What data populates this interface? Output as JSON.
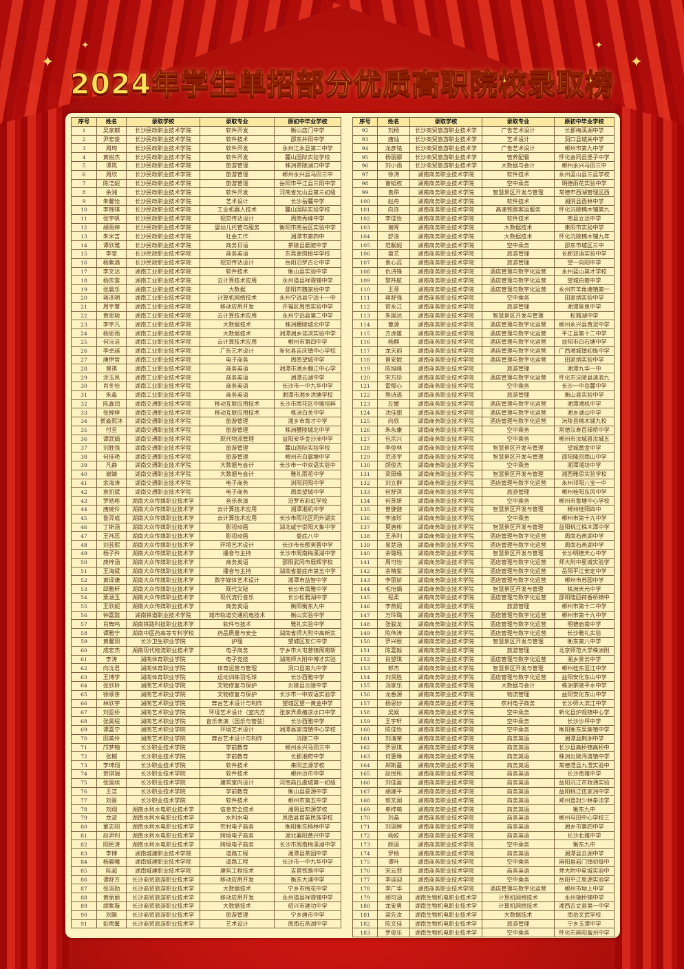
{
  "title": "2024年学生单招部分优质高职院校录取榜",
  "colors": {
    "background": "#c8150f",
    "panel": "#fdf3c2",
    "title": "#ffe25a",
    "title_outline": "#8a1c00"
  },
  "headers": [
    "序号",
    "姓名",
    "录取学校",
    "录取专业",
    "原初中毕业学校"
  ],
  "left": {
    "rows": [
      [
        "1",
        "吴家麒",
        "长沙民政职业技术学院",
        "软件开发",
        "衡山店门中学"
      ],
      [
        "2",
        "尹宏俊",
        "长沙民政职业技术学院",
        "软件技术",
        "邵东井田中学"
      ],
      [
        "3",
        "周珣",
        "长沙民政职业技术学院",
        "软件开发",
        "永州江永县第二中学"
      ],
      [
        "4",
        "黄锐杰",
        "长沙民政职业技术学院",
        "软件开发",
        "麓山国际实验学校"
      ],
      [
        "5",
        "谭岚",
        "长沙民政职业技术学院",
        "旅游管理",
        "株洲茶陵湖口中学"
      ],
      [
        "6",
        "周欣",
        "长沙民政职业技术学院",
        "旅游管理",
        "郴州永兴县马田三中"
      ],
      [
        "7",
        "陈洁妮",
        "长沙民政职业技术学院",
        "旅游管理",
        "岳阳市平江县三阳中学"
      ],
      [
        "8",
        "余湘",
        "长沙民政职业技术学院",
        "软件开发",
        "河南省光山县第三初级"
      ],
      [
        "9",
        "朱馨怡",
        "长沙民政职业技术学院",
        "艺术设计",
        "长沙岳麓中学"
      ],
      [
        "10",
        "李锦祺",
        "长沙民政职业技术学院",
        "工业机器人技术",
        "麓山国际实验学校"
      ],
      [
        "11",
        "张宇帆",
        "长沙民政职业技术学院",
        "视觉传达设计",
        "周南秀峰中学"
      ],
      [
        "12",
        "胡雨婷",
        "长沙民政职业技术学院",
        "婴幼儿托管与服务",
        "衡阳市南岳区实验中学"
      ],
      [
        "13",
        "朱米吉",
        "长沙民政职业技术学院",
        "社会工作",
        "湘潭市第四中"
      ],
      [
        "14",
        "谭欣雅",
        "长沙民政职业技术学院",
        "商务日语",
        "茶陵县腰陂中学"
      ],
      [
        "15",
        "李莹",
        "长沙民政职业技术学院",
        "商务英语",
        "东莞谢岗振华学校"
      ],
      [
        "16",
        "杨紫潞",
        "长沙民政职业技术学院",
        "视觉传达设计",
        "岳阳汨罗古仑中学"
      ],
      [
        "17",
        "李文达",
        "湖南工业职业技术学院",
        "软件技术",
        "衡山县实验中学"
      ],
      [
        "18",
        "杨庆雲",
        "湖南工业职业技术学院",
        "云计算技术应用",
        "永州道县祥霖铺中学"
      ],
      [
        "19",
        "张晨乐",
        "湖南工业职业技术学院",
        "大数据",
        "邵阳市魏家桥中学"
      ],
      [
        "20",
        "蒋泽明",
        "湖南工业职业技术学院",
        "计算机网络技术",
        "永州宁远县宁远十一中"
      ],
      [
        "21",
        "周宇覃",
        "湖南工业职业技术学院",
        "移动应用开发",
        "开福区周南实验中学"
      ],
      [
        "22",
        "黄思聪",
        "湖南工业职业技术学院",
        "云计算技术应用",
        "永州宁远县第二中学"
      ],
      [
        "23",
        "李宇凡",
        "湖南工业职业技术学院",
        "大数据技术",
        "株洲醴陵城北中学"
      ],
      [
        "24",
        "杨思雨",
        "湖南工业职业技术学院",
        "大数据技术",
        "湘潭湘乡涟滨实验中学"
      ],
      [
        "25",
        "何沅洁",
        "湖南工业职业技术学院",
        "云计算技术应用",
        "郴州市第四中学"
      ],
      [
        "26",
        "李卓越",
        "湖南工业职业技术学院",
        "广告艺术设计",
        "新化县吉庆镇中心学校"
      ],
      [
        "27",
        "唐伊哲",
        "湖南工业职业技术学院",
        "电子商务",
        "周南望城中学"
      ],
      [
        "28",
        "曾祺",
        "湖南工业职业技术学院",
        "商务英语",
        "湘潭市湘乡翻江中心学"
      ],
      [
        "29",
        "涂玉凤",
        "湖南工业职业技术学院",
        "商务英语",
        "湘潭云湖中学"
      ],
      [
        "30",
        "肖冬怡",
        "湖南工业职业技术学院",
        "商务英语",
        "长沙市一中九华中学"
      ],
      [
        "31",
        "朱淼",
        "湖南工业职业技术学院",
        "商务英语",
        "湘潭市湘乡洪塘学校"
      ],
      [
        "32",
        "陈鑫润",
        "湖南交通职业技术学院",
        "移动互联应用技术",
        "长沙市雨花区中雅培粹"
      ],
      [
        "33",
        "张婷婷",
        "湖南交通职业技术学院",
        "移动互联应用技术",
        "株洲白关中学"
      ],
      [
        "34",
        "贺淼熙沐",
        "湖南交通职业技术学院",
        "旅游管理",
        "湘乡市育才中学"
      ],
      [
        "35",
        "付旦",
        "湖南交通职业技术学院",
        "旅游管理",
        "株洲醴陵城北中学"
      ],
      [
        "36",
        "谭武娟",
        "湖南交通职业技术学院",
        "现代物流管理",
        "益阳安华金沙洲中学"
      ],
      [
        "37",
        "刘胜强",
        "湖南交通职业技术学院",
        "旅游管理",
        "麓山国际实验学校"
      ],
      [
        "38",
        "何佳艳",
        "湖南交通职业技术学院",
        "旅游管理",
        "郴州市白露塘中学"
      ],
      [
        "39",
        "凡静",
        "湖南交通职业技术学院",
        "大数据与会计",
        "长沙市一中双语实验中"
      ],
      [
        "40",
        "谢婧",
        "湖南交通职业技术学院",
        "大数据与会计",
        "雅礼雨花中学"
      ],
      [
        "41",
        "余海涛",
        "湖南交通职业技术学院",
        "电子商务",
        "浏阳洞阳中学"
      ],
      [
        "42",
        "袁凯斌",
        "湖南交通职业技术学院",
        "电子商务",
        "周南望城中学"
      ],
      [
        "43",
        "罗皓彬",
        "湖南大众传媒职业技术学",
        "音乐表演",
        "汨罗市彩虹学校"
      ],
      [
        "44",
        "唐婉伶",
        "湖南大众传媒职业技术学",
        "云计算技术应用",
        "湘潭湘机中学"
      ],
      [
        "45",
        "鲁羿成",
        "湖南大众传媒职业技术学",
        "云计算技术应用",
        "长沙市雨花区同升湖实"
      ],
      [
        "46",
        "丁斯涵",
        "湖南大众传媒职业技术学",
        "影视动画",
        "湖北咸宁崇阳大集中学"
      ],
      [
        "47",
        "王祎蕊",
        "湖南大众传媒职业技术学",
        "影视动画",
        "娄底八中"
      ],
      [
        "48",
        "刘芸熙",
        "湖南大众传媒职业技术学",
        "环境艺术设计",
        "长沙市长郡芙蓉中学"
      ],
      [
        "49",
        "杨子矜",
        "湖南大众传媒职业技术学",
        "播音与主持",
        "长沙市周南梅溪湖中学"
      ],
      [
        "50",
        "庾梓涵",
        "湖南大众传媒职业技术学",
        "商务英语",
        "邵阳武冈市展辉学校"
      ],
      [
        "51",
        "王海斌",
        "湖南大众传媒职业技术学",
        "播音与主持",
        "湖南省娄底市第五中学"
      ],
      [
        "52",
        "黄译谦",
        "湖南大众传媒职业技术学",
        "数字媒体艺术设计",
        "湘潭市益智中学"
      ],
      [
        "53",
        "邱雅轩",
        "湖南大众传媒职业技术学",
        "现代文秘",
        "长沙市南雅中学"
      ],
      [
        "54",
        "粟涵玉",
        "湖南大众传媒职业技术学",
        "现代流行音乐",
        "长沙松雅湖中学"
      ],
      [
        "55",
        "王欣妮",
        "湖南大众传媒职业技术学",
        "商务英语",
        "衡阳衡东九中"
      ],
      [
        "56",
        "钟嘉懿",
        "湖南铁道职业技术学院",
        "城市轨道交通机电技术",
        "衡山实验中学"
      ],
      [
        "57",
        "肖舞鸣",
        "湖南铁路科技职业技术学",
        "软件与技术",
        "雅礼实验中学"
      ],
      [
        "58",
        "谭雅宁",
        "湖南中医药高等专科学校",
        "药品质量与安全",
        "湖南省师大附中高新实"
      ],
      [
        "59",
        "黄馨田",
        "长沙卫生职业学院",
        "护理",
        "望城区友仁中学"
      ],
      [
        "60",
        "成宏杰",
        "湖南现代物流职业技术学",
        "电子商务",
        "宁乡市大屯营镇周南斩"
      ],
      [
        "61",
        "李涛",
        "湖南体育职业学院",
        "电子竞技",
        "湖南师大附中博才实验"
      ],
      [
        "62",
        "向沈君",
        "湖南体育职业学院",
        "体育运营与管理",
        "洞口县第九中学"
      ],
      [
        "63",
        "王博学",
        "湖南体育职业学院",
        "运动训练羽毛球",
        "长沙西雅中学"
      ],
      [
        "64",
        "张欣聆",
        "湖南艺术职业学院",
        "文物修复与保护",
        "炎陵县炎陵中学"
      ],
      [
        "65",
        "徐顺亲",
        "湖南艺术职业学院",
        "文物修复与保护",
        "长沙市一中双语实验学"
      ],
      [
        "66",
        "林欣宇",
        "湖南艺术职业学院",
        "舞台艺术设计与制作",
        "望城区望一黄金中学"
      ],
      [
        "67",
        "刘亚桥",
        "湖南艺术职业学院",
        "环境艺术设计（室内方",
        "张家界桑植凉水口中学"
      ],
      [
        "68",
        "张昊程",
        "湖南艺术职业学院",
        "音乐表演（国乐与管弦）",
        "长沙西雅中学"
      ],
      [
        "69",
        "谭嘉宁",
        "湖南艺术职业学院",
        "环境艺术设计",
        "湘潭易家湾镇中心学校"
      ],
      [
        "70",
        "田美伶",
        "湖南艺术职业学院",
        "舞台艺术设计与制作",
        "沅陵二中"
      ],
      [
        "71",
        "邝梦翰",
        "长沙职业技术学院",
        "学前教育",
        "郴州永兴马田三中"
      ],
      [
        "72",
        "张樾",
        "长沙职业技术学院",
        "学前教育",
        "长郡湘府中学"
      ],
      [
        "73",
        "李坤翔",
        "长沙职业技术学院",
        "软件技术",
        "耒阳正源学校"
      ],
      [
        "74",
        "贺琪瑞",
        "长沙职业技术学院",
        "软件技术",
        "郴州汾市中学"
      ],
      [
        "75",
        "张国续",
        "长沙职业技术学院",
        "建筑室内设计",
        "河南商丘虞城第一初级"
      ],
      [
        "76",
        "王洁",
        "长沙职业技术学院",
        "学前教育",
        "衡山县星源中学"
      ],
      [
        "77",
        "刘晋",
        "长沙职业技术学院",
        "软件技术",
        "郴州市第五中学"
      ],
      [
        "78",
        "刘翔",
        "湖南水利水电职业技术学",
        "信息安全技术",
        "湘阴县知源学校"
      ],
      [
        "79",
        "龙波",
        "湖南水利水电职业技术学",
        "水利水电",
        "凤凰县育英民族学校"
      ],
      [
        "80",
        "董志阳",
        "湖南水利水电职业技术学",
        "农村电子商务",
        "衡阳衡东杨林中学"
      ],
      [
        "81",
        "赵尹利",
        "湖南水利水电职业技术学",
        "跨境电子商务",
        "湖北襄阳黄兴中学"
      ],
      [
        "82",
        "阳民涛",
        "湖南水利水电职业技术学",
        "跨境电子商务",
        "长沙市周南梅溪湖中学"
      ],
      [
        "83",
        "李博",
        "湖南城建职业技术学院",
        "道路工程",
        "湘潭县茶园中学"
      ],
      [
        "84",
        "杨晨曦",
        "湖南城建职业技术学院",
        "道路工程",
        "长沙市一中九华中学"
      ],
      [
        "85",
        "陈超",
        "湖南城建职业技术学院",
        "建筑工程技术",
        "吉首铁路中学"
      ],
      [
        "86",
        "谭舒方",
        "长沙商贸旅游职业技术学",
        "移动应用开发",
        "衡东大浦中学"
      ],
      [
        "87",
        "张羽勋",
        "长沙商贸旅游职业技术学",
        "大数据技术",
        "宁乡市梅花中学"
      ],
      [
        "88",
        "黄丽丽",
        "长沙商贸旅游职业技术学",
        "移动应用开发",
        "永州道县祥霖铺中学"
      ],
      [
        "89",
        "胡紫璇",
        "长沙商贸旅游职业技术学",
        "大数据技术",
        "绍兴市建功中学"
      ],
      [
        "90",
        "刘飘",
        "长沙商贸旅游职业技术学",
        "旅游管理",
        "宁乡唐市中学"
      ],
      [
        "91",
        "彭雨馨",
        "长沙商贸旅游职业技术学",
        "艺术设计",
        "周南石燕湖中学"
      ]
    ]
  },
  "right": {
    "rows": [
      [
        "92",
        "刘杨",
        "长沙商贸旅游职业技术学",
        "广告艺术设计",
        "长郡梅溪湖中学"
      ],
      [
        "93",
        "唐灿",
        "长沙商贸旅游职业技术学",
        "艺术设计",
        "洞口县城关中学"
      ],
      [
        "94",
        "龙彦铭",
        "长沙商贸旅游职业技术学",
        "广告艺术设计",
        "郴州市第九中学"
      ],
      [
        "95",
        "杨丽娜",
        "长沙商贸旅游职业技术学",
        "营养配餐",
        "怀化会同县堡子中学"
      ],
      [
        "96",
        "刘小雨",
        "长沙商贸旅游职业技术学",
        "大数据与会计",
        "郴州永兴马田三中"
      ],
      [
        "97",
        "徐涛",
        "湖南商务职业技术学院",
        "软件技术",
        "永州蓝山县三蓝学校"
      ],
      [
        "98",
        "谢韬权",
        "湖南商务职业技术学院",
        "空中乘务",
        "明德雨花实验中学"
      ],
      [
        "99",
        "袁昂",
        "湖南商务职业技术学院",
        "智慧景区开发与管理",
        "常德市西湖管理区西"
      ],
      [
        "100",
        "赵舟",
        "湖南商务职业技术学院",
        "软件技术",
        "湘阴县西林中学"
      ],
      [
        "101",
        "向亦",
        "湖南商务职业技术学院",
        "高速铁路客运服务",
        "怀化沅陵楠木铺第九"
      ],
      [
        "102",
        "李佳怡",
        "湖南商务职业技术学院",
        "软件技术",
        "南县立达中学"
      ],
      [
        "103",
        "谢晖",
        "湖南商务职业技术学院",
        "大数据技术",
        "耒阳市实验中学"
      ],
      [
        "104",
        "舒浪",
        "湖南商务职业技术学院",
        "大数据技术",
        "怀化沅陵楠木铺九年"
      ],
      [
        "105",
        "范靓妮",
        "湖南商务职业技术学院",
        "空中乘务",
        "邵东市城区三中"
      ],
      [
        "106",
        "盘艺",
        "湖南商务职业技术学院",
        "旅游管理",
        "长郡双语实验中学"
      ],
      [
        "107",
        "袁心蕊",
        "湖南商务职业技术学院",
        "旅游管理",
        "望一向阳中学"
      ],
      [
        "108",
        "仇诗锋",
        "湖南商务职业技术学院",
        "酒店管理与数字化运营",
        "永州蓝山英才学校"
      ],
      [
        "109",
        "黎祎航",
        "湖南商务职业技术学院",
        "酒店管理与数字化运营",
        "望城白箬中学"
      ],
      [
        "110",
        "王菲",
        "湖南商务职业技术学院",
        "酒店管理与数字化运营",
        "永州市羊角塘镇第一"
      ],
      [
        "111",
        "蒋舒强",
        "湖南商务职业技术学院",
        "空中乘务",
        "田家炳实验中学"
      ],
      [
        "112",
        "官永江",
        "湖南商务职业技术学院",
        "旅游管理",
        "湘潭景泉中学"
      ],
      [
        "113",
        "朱国达",
        "湖南商务职业技术学院",
        "智慧景区开发与管理",
        "松雅湖中学"
      ],
      [
        "114",
        "曹源",
        "湖南商务职业技术学院",
        "酒店管理与数字化运营",
        "郴州永兴县黄泥中学"
      ],
      [
        "115",
        "方虎雄",
        "湖南商务职业技术学院",
        "酒店管理与数字化运营",
        "平江县第十二中学"
      ],
      [
        "116",
        "杨麒",
        "湖南商务职业技术学院",
        "酒店管理与数字化运营",
        "益阳市白石塘中学"
      ],
      [
        "117",
        "龙天韵",
        "湖南商务职业技术学院",
        "酒店管理与数字化运营",
        "广西湘城镇初级中学"
      ],
      [
        "118",
        "曾安妮",
        "湖南商务职业技术学院",
        "酒店管理与数字化运营",
        "田家炳实验中学"
      ],
      [
        "119",
        "陈旭峰",
        "湖南商务职业技术学院",
        "旅游管理",
        "湘潭九华一中"
      ],
      [
        "120",
        "宋万珍",
        "湖南商务职业技术学院",
        "酒店管理与数字化运营",
        "怀化市沅陵县清浪九"
      ],
      [
        "121",
        "雷郁心",
        "湖南商务职业技术学院",
        "空中乘务",
        "长沙一中岳麓中学"
      ],
      [
        "122",
        "熊诗语",
        "湖南商务职业技术学院",
        "旅游管理",
        "衡山县实验中学"
      ],
      [
        "123",
        "左媛",
        "湖南商务职业技术学院",
        "酒店管理与数字化运营",
        "湘潭湘机中学"
      ],
      [
        "124",
        "沈佳甜",
        "湖南商务职业技术学院",
        "酒店管理与数字化运营",
        "湘乡湖山中学"
      ],
      [
        "125",
        "向欣",
        "湖南商务职业技术学院",
        "酒店管理与数字化运营",
        "沅陵县楠木铺九校"
      ],
      [
        "126",
        "朱永康",
        "湖南商务职业技术学院",
        "空中乘务",
        "常德汉寿百禄桥中学"
      ],
      [
        "127",
        "包宗兴",
        "湖南商务职业技术学院",
        "空中乘务",
        "郴州市汝城县汝城五"
      ],
      [
        "128",
        "李俊林",
        "湖南商务职业技术学院",
        "智慧景区开发与管理",
        "望城黄金中学"
      ],
      [
        "129",
        "范泽宇",
        "湖南商务职业技术学院",
        "智慧景区开发与管理",
        "邵阳隆回雨山中学"
      ],
      [
        "130",
        "颜俊杰",
        "湖南商务职业技术学院",
        "空中乘务",
        "湘潭湘坊中学"
      ],
      [
        "131",
        "梁田缘",
        "湖南商务职业技术学院",
        "智慧景区开发与管理",
        "湘西雅思实验学校"
      ],
      [
        "132",
        "刘立群",
        "湖南商务职业技术学院",
        "酒店管理与数字化运营",
        "永州祁阳八宝一中"
      ],
      [
        "133",
        "何舒淇",
        "湖南商务职业技术学院",
        "旅游管理",
        "郴州桂阳东风中学"
      ],
      [
        "134",
        "何苏妍",
        "湖南商务职业技术学院",
        "空中乘务",
        "郴州市鲁塘中心学校"
      ],
      [
        "135",
        "曾健健",
        "湖南商务职业技术学院",
        "智慧景区开发与管理",
        "郴州桂阳四中"
      ],
      [
        "136",
        "李淑珍",
        "湖南商务职业技术学院",
        "空中乘务",
        "郴州市第十九中学"
      ],
      [
        "137",
        "莫唐彬",
        "湖南商务职业技术学院",
        "智慧景区开发与管理",
        "益阳桃江株木潭中学"
      ],
      [
        "138",
        "王承利",
        "湖南商务职业技术学院",
        "酒店管理与数字化运营",
        "周南石燕湖中学"
      ],
      [
        "139",
        "易楚涵",
        "湖南商务职业技术学院",
        "酒店管理与数字化运营",
        "周南石燕湖中学"
      ],
      [
        "140",
        "余璐瑶",
        "湖南商务职业技术学院",
        "智慧景区开发与管理",
        "长沙明德天心中学"
      ],
      [
        "141",
        "周可怡",
        "湖南商务职业技术学院",
        "酒店管理与数字化运营",
        "师大附中星城实验学"
      ],
      [
        "142",
        "余晴紫",
        "湖南商务职业技术学院",
        "酒店管理与数字化运营",
        "岳阳平江安定中学"
      ],
      [
        "143",
        "李丽娇",
        "湖南商务职业技术学院",
        "酒店管理与数字化运营",
        "郴州市苏园中学"
      ],
      [
        "144",
        "毛怡娟",
        "湖南商务职业技术学院",
        "智慧景区开发与管理",
        "株洲天元中学"
      ],
      [
        "145",
        "程柔",
        "湖南商务职业技术学院",
        "酒店管理与数字化运营",
        "邵阳隆回荷香桥镇中"
      ],
      [
        "146",
        "李燕妮",
        "湖南商务职业技术学院",
        "旅游管理",
        "郴州市第十二中学"
      ],
      [
        "147",
        "万玲璐",
        "湖南商务职业技术学院",
        "酒店管理与数字化运营",
        "郴州市第十九中学"
      ],
      [
        "148",
        "张骏龙",
        "湖南商务职业技术学院",
        "酒店管理与数字化运营",
        "明德启南中学"
      ],
      [
        "149",
        "陈伟涛",
        "湖南商务职业技术学院",
        "酒店管理与数字化运营",
        "长沙雅礼实验"
      ],
      [
        "150",
        "罗兴根",
        "湖南商务职业技术学院",
        "智慧景区开发与管理",
        "衡东第八中学"
      ],
      [
        "151",
        "陈嘉毅",
        "湖南商务职业技术学院",
        "旅游管理",
        "北京师范大学株洲附"
      ],
      [
        "152",
        "肖望琪",
        "湖南商务职业技术学院",
        "酒店管理与数字化运营",
        "湘乡景云中学"
      ],
      [
        "153",
        "郭杰",
        "湖南商务职业技术学院",
        "智慧景区开发与管理",
        "郴州桂东沤江中学"
      ],
      [
        "154",
        "刘贤胜",
        "湖南商务职业技术学院",
        "酒店管理与数字化运营",
        "益阳安化东山中学"
      ],
      [
        "155",
        "汤家乐",
        "湖南商务职业技术学院",
        "大数据与会计",
        "株洲茶陵平水中学"
      ],
      [
        "156",
        "龙香源",
        "湖南商务职业技术学院",
        "物流管理",
        "益阳安化东山中学"
      ],
      [
        "157",
        "杨思妙",
        "湖南商务职业技术学院",
        "农村电子商务",
        "长沙师大滨江中学"
      ],
      [
        "158",
        "吴娱",
        "湖南商务职业技术学院",
        "空中乘务",
        "新化县炉观镇中心学"
      ],
      [
        "159",
        "王宇轩",
        "湖南商务职业技术学院",
        "空中乘务",
        "长沙沙坪中学"
      ],
      [
        "160",
        "陈佳怡",
        "湖南商务职业技术学院",
        "空中乘务",
        "衡阳衡东吴集镇中学"
      ],
      [
        "161",
        "刘清荣",
        "湖南商务职业技术学院",
        "商务英语",
        "湘潭县荆洲中学"
      ],
      [
        "162",
        "罗思琪",
        "湖南商务职业技术学院",
        "商务英语",
        "长沙县高桥镇高桥中"
      ],
      [
        "163",
        "何惠琳",
        "湖南商务职业技术学院",
        "商务英语",
        "株洲炎陵沔渡镇中学"
      ],
      [
        "164",
        "郑斯蔓",
        "湖南商务职业技术学院",
        "商务英语",
        "常德澧县九澧实验中"
      ],
      [
        "165",
        "赵悦彤",
        "湖南商务职业技术学院",
        "商务英语",
        "长沙南雅中学"
      ],
      [
        "166",
        "刘佳盈",
        "湖南商务职业技术学院",
        "商务英语",
        "益阳沅江市政通实验"
      ],
      [
        "167",
        "胡建平",
        "湖南商务职业技术学院",
        "商务英语",
        "益阳桃江伍家洲中学"
      ],
      [
        "168",
        "郭文阐",
        "湖南商务职业技术学院",
        "商务英语",
        "郑州登封少林拳法学"
      ],
      [
        "169",
        "单梓萌",
        "湖南商务职业技术学院",
        "商务英语",
        "衡东九中"
      ],
      [
        "170",
        "刘晶",
        "湖南商务职业技术学院",
        "商务英语",
        "郴州马田中心学校三"
      ],
      [
        "171",
        "刘羽婷",
        "湖南商务职业技术学院",
        "商务英语",
        "湘乡市第四中学"
      ],
      [
        "172",
        "杨姣",
        "湖南商务职业技术学院",
        "商务英语",
        "长沙北雅中学"
      ],
      [
        "173",
        "颜语",
        "湖南商务职业技术学院",
        "空中乘务",
        "衡东九中"
      ],
      [
        "174",
        "罗杨",
        "湖南商务职业技术学院",
        "商务英语",
        "湘潭县云湖中学"
      ],
      [
        "175",
        "谭叶",
        "湖南商务职业技术学院",
        "空中乘务",
        "麻阳县岩门镇初级中"
      ],
      [
        "176",
        "宋云菲",
        "湖南商务职业技术学院",
        "商务英语",
        "师大附中星城实验中"
      ],
      [
        "177",
        "李迎迎",
        "湖南商务职业技术学院",
        "空中乘务",
        "岳阳平江思源实验学"
      ],
      [
        "178",
        "李广华",
        "湖南商务职业技术学院",
        "酒店管理与数字化运营",
        "郴州市坳上中学"
      ],
      [
        "179",
        "胡可涵",
        "湖南生物机电职业技术学",
        "计算机网络技术",
        "永州端桥铺中学"
      ],
      [
        "180",
        "龙安勇",
        "湖南生物机电职业技术学",
        "计算机网络技术",
        "湘西古丈县第一中学"
      ],
      [
        "181",
        "梁先汝",
        "湖南生物机电职业技术学",
        "大数据技术",
        "南岳文武学校"
      ],
      [
        "182",
        "陈文佳",
        "湖南生物机电职业技术学",
        "旅游管理",
        "宁乡玉潭中学"
      ],
      [
        "183",
        "罗俊乐",
        "湖南生物机电职业技术学",
        "空中乘务",
        "怀化市麻阳富州中学"
      ]
    ]
  }
}
